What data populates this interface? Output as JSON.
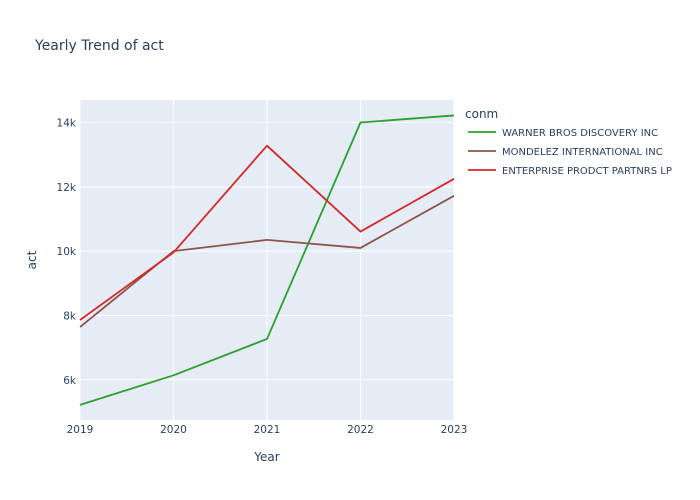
{
  "chart_data": {
    "type": "line",
    "title": "Yearly Trend of act",
    "xlabel": "Year",
    "ylabel": "act",
    "x": [
      2019,
      2020,
      2021,
      2022,
      2023
    ],
    "x_ticks": [
      "2019",
      "2020",
      "2021",
      "2022",
      "2023"
    ],
    "xlim": [
      2019,
      2023
    ],
    "y_ticks": [
      6000,
      8000,
      10000,
      12000,
      14000
    ],
    "y_tick_labels": [
      "6k",
      "8k",
      "10k",
      "12k",
      "14k"
    ],
    "ylim": [
      4750,
      14700
    ],
    "grid": true,
    "legend_position": "right",
    "legend_title": "conm",
    "series": [
      {
        "name": "WARNER BROS DISCOVERY INC",
        "color": "#2ca02c",
        "values": [
          5220,
          6140,
          7270,
          14000,
          14220
        ]
      },
      {
        "name": "MONDELEZ INTERNATIONAL INC",
        "color": "#8c564b",
        "values": [
          7640,
          10000,
          10350,
          10100,
          11720
        ]
      },
      {
        "name": "ENTERPRISE PRODCT PARTNRS LP",
        "color": "#d62728",
        "values": [
          7860,
          9960,
          13280,
          10610,
          12250
        ]
      }
    ]
  }
}
